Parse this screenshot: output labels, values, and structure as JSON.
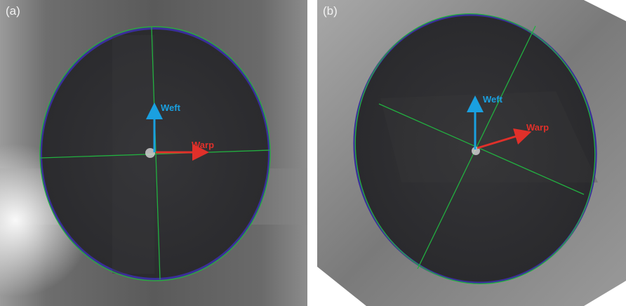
{
  "panels": [
    {
      "tag": "(a)",
      "weft_label": "Weft",
      "warp_label": "Warp"
    },
    {
      "tag": "(b)",
      "weft_label": "Weft",
      "warp_label": "Warp"
    }
  ],
  "colors": {
    "weft_arrow": "#1aa0e0",
    "warp_arrow": "#e0302a",
    "fit_ellipse": "#22b040",
    "contour": "#3a2fa0",
    "stain": "#2f2f31",
    "fabric": "#8a8a8a"
  }
}
